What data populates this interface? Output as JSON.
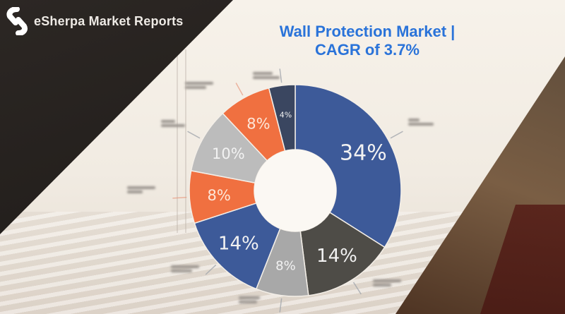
{
  "header": {
    "brand": "eSherpa Market Reports",
    "logo_icon": "esherpa-s-logo-icon"
  },
  "title_lines": [
    "Wall Protection Market |",
    "CAGR of 3.7%"
  ],
  "colors": {
    "title": "#2a73d9",
    "blue": "#3d5a99",
    "dark_gray": "#4e4c47",
    "light_gray": "#bcbcbc",
    "orange": "#f07040",
    "navy": "#3a4660",
    "mid_gray": "#a8a8a8"
  },
  "chart_data": {
    "type": "pie",
    "donut": true,
    "title": "Wall Protection Market | CAGR of 3.7%",
    "labels_note": "segment names are blurred/illegible in source",
    "slices": [
      {
        "label": "34%",
        "value": 34,
        "color": "#3d5a99"
      },
      {
        "label": "14%",
        "value": 14,
        "color": "#4e4c47"
      },
      {
        "label": "8%",
        "value": 8,
        "color": "#a8a8a8"
      },
      {
        "label": "14%",
        "value": 14,
        "color": "#3d5a99"
      },
      {
        "label": "8%",
        "value": 8,
        "color": "#f07040"
      },
      {
        "label": "10%",
        "value": 10,
        "color": "#bcbcbc"
      },
      {
        "label": "8%",
        "value": 8,
        "color": "#f07040"
      },
      {
        "label": "4%",
        "value": 4,
        "color": "#3a4660"
      }
    ],
    "legend": "none",
    "start": "top",
    "direction": "clockwise"
  }
}
